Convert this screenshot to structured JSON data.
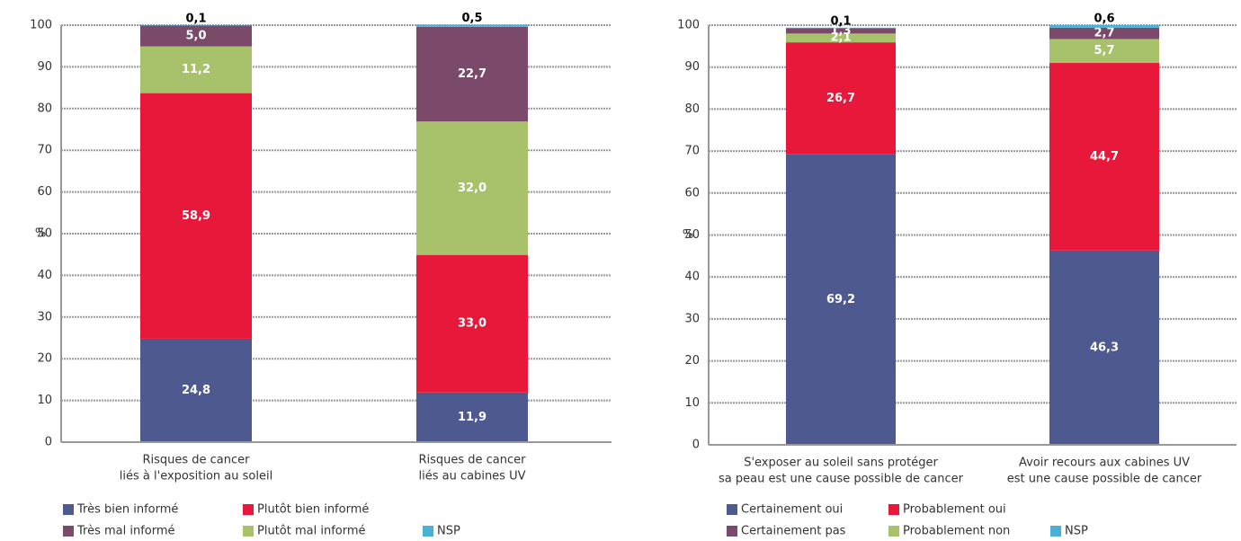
{
  "chart_data": [
    {
      "type": "bar",
      "stacked": true,
      "ylabel": "%",
      "categories": [
        [
          "Risques de cancer",
          "liés à l'exposition au soleil"
        ],
        [
          "Risques de cancer",
          "liés au cabines UV"
        ]
      ],
      "ylim": [
        0,
        100
      ],
      "yticks": [
        0,
        10,
        20,
        30,
        40,
        50,
        60,
        70,
        80,
        90,
        100
      ],
      "grid": true,
      "series": [
        {
          "name": "Très bien informé",
          "color": "#4e5a8f",
          "values": [
            24.8,
            11.9
          ],
          "value_labels": [
            "24,8",
            "11,9"
          ]
        },
        {
          "name": "Plutôt bien informé",
          "color": "#e8183a",
          "values": [
            58.9,
            33.0
          ],
          "value_labels": [
            "58,9",
            "33,0"
          ]
        },
        {
          "name": "Très mal informé",
          "color": "#7b4a6a",
          "values": [
            5.0,
            22.7
          ],
          "value_labels": [
            "5,0",
            "22,7"
          ]
        },
        {
          "name": "Plutôt mal informé",
          "color": "#a8c16b",
          "values": [
            11.2,
            32.0
          ],
          "value_labels": [
            "11,2",
            "32,0"
          ]
        },
        {
          "name": "NSP",
          "color": "#4bb0d8",
          "values": [
            0.1,
            0.5
          ],
          "value_labels": [
            "0,1",
            "0,5"
          ]
        }
      ]
    },
    {
      "type": "bar",
      "stacked": true,
      "ylabel": "%",
      "categories": [
        [
          "S'exposer au soleil sans protéger",
          "sa peau est une cause possible de cancer"
        ],
        [
          "Avoir recours aux cabines UV",
          "est une cause possible de cancer"
        ]
      ],
      "ylim": [
        0,
        100
      ],
      "yticks": [
        0,
        10,
        20,
        30,
        40,
        50,
        60,
        70,
        80,
        90,
        100
      ],
      "grid": true,
      "series": [
        {
          "name": "Certainement oui",
          "color": "#4e5a8f",
          "values": [
            69.2,
            46.3
          ],
          "value_labels": [
            "69,2",
            "46,3"
          ]
        },
        {
          "name": "Probablement oui",
          "color": "#e8183a",
          "values": [
            26.7,
            44.7
          ],
          "value_labels": [
            "26,7",
            "44,7"
          ]
        },
        {
          "name": "Certainement pas",
          "color": "#7b4a6a",
          "values": [
            1.3,
            2.7
          ],
          "value_labels": [
            "1,3",
            "2,7"
          ]
        },
        {
          "name": "Probablement non",
          "color": "#a8c16b",
          "values": [
            2.1,
            5.7
          ],
          "value_labels": [
            "2,1",
            "5,7"
          ]
        },
        {
          "name": "NSP",
          "color": "#4bb0d8",
          "values": [
            0.1,
            0.6
          ],
          "value_labels": [
            "0,1",
            "0,6"
          ]
        }
      ]
    }
  ]
}
